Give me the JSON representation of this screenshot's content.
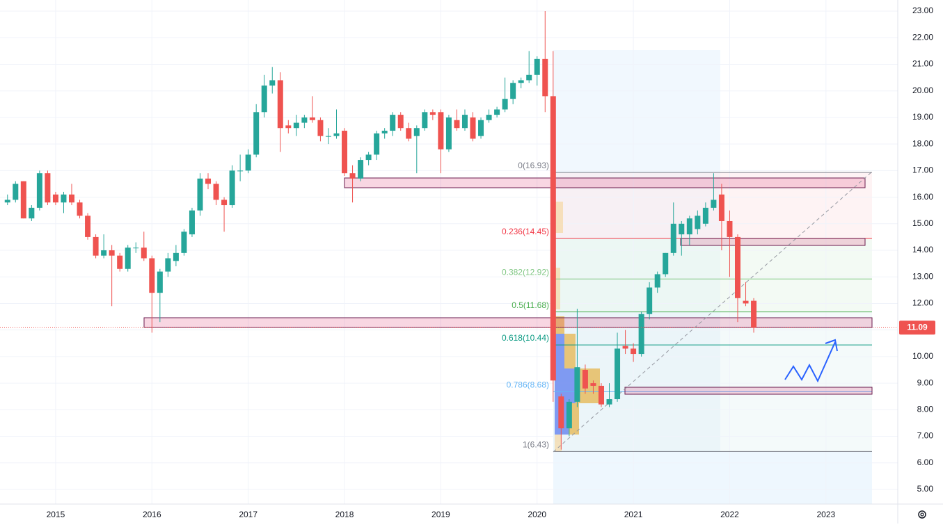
{
  "chart_data": {
    "type": "candlestick",
    "categories": [
      null,
      null,
      null,
      null,
      null,
      null,
      "2015",
      null,
      null,
      null,
      null,
      null,
      null,
      null,
      null,
      null,
      null,
      null,
      "2016",
      null,
      null,
      null,
      null,
      null,
      null,
      null,
      null,
      null,
      null,
      null,
      "2017",
      null,
      null,
      null,
      null,
      null,
      null,
      null,
      null,
      null,
      null,
      null,
      "2018",
      null,
      null,
      null,
      null,
      null,
      null,
      null,
      null,
      null,
      null,
      null,
      "2019",
      null,
      null,
      null,
      null,
      null,
      null,
      null,
      null,
      null,
      null,
      null,
      "2020",
      null,
      null,
      null,
      null,
      null,
      null,
      null,
      null,
      null,
      null,
      null,
      "2021",
      null,
      null,
      null,
      null,
      null,
      null,
      null,
      null,
      null,
      null,
      null,
      "2022",
      null,
      null,
      null,
      null,
      null,
      null,
      null,
      null,
      null,
      null,
      null,
      "2023",
      null,
      null,
      null,
      null,
      null
    ],
    "ohlc": [
      [
        15.8,
        16.1,
        15.7,
        15.9
      ],
      [
        15.9,
        16.6,
        15.8,
        16.5
      ],
      [
        16.6,
        16.6,
        15.2,
        15.2
      ],
      [
        15.2,
        15.7,
        15.1,
        15.6
      ],
      [
        15.6,
        17.0,
        15.5,
        16.9
      ],
      [
        16.9,
        17.0,
        15.7,
        15.8
      ],
      [
        16.1,
        16.2,
        15.7,
        15.8
      ],
      [
        15.8,
        16.2,
        15.4,
        16.1
      ],
      [
        16.1,
        16.5,
        15.7,
        15.8
      ],
      [
        15.8,
        15.9,
        15.2,
        15.3
      ],
      [
        15.3,
        15.4,
        14.4,
        14.5
      ],
      [
        14.5,
        14.6,
        13.7,
        13.8
      ],
      [
        13.8,
        14.6,
        13.7,
        14.0
      ],
      [
        14.0,
        14.2,
        11.9,
        13.8
      ],
      [
        13.8,
        13.9,
        13.2,
        13.3
      ],
      [
        13.3,
        14.2,
        13.2,
        14.1
      ],
      [
        14.1,
        14.3,
        13.9,
        14.1
      ],
      [
        14.1,
        14.7,
        13.6,
        13.7
      ],
      [
        13.7,
        13.8,
        10.9,
        12.4
      ],
      [
        12.4,
        13.3,
        11.3,
        13.2
      ],
      [
        13.2,
        13.9,
        13.0,
        13.7
      ],
      [
        13.6,
        14.2,
        13.4,
        13.9
      ],
      [
        13.9,
        14.8,
        13.8,
        14.7
      ],
      [
        14.6,
        15.6,
        14.5,
        15.5
      ],
      [
        15.5,
        16.9,
        15.3,
        16.7
      ],
      [
        16.7,
        16.9,
        16.3,
        16.5
      ],
      [
        16.5,
        16.6,
        15.7,
        15.9
      ],
      [
        15.9,
        16.0,
        14.7,
        15.7
      ],
      [
        15.7,
        17.2,
        15.6,
        17.0
      ],
      [
        17.0,
        17.6,
        16.6,
        17.0
      ],
      [
        17.0,
        17.8,
        16.9,
        17.6
      ],
      [
        17.6,
        19.5,
        17.5,
        19.2
      ],
      [
        19.2,
        20.6,
        19.0,
        20.2
      ],
      [
        20.2,
        20.9,
        19.9,
        20.4
      ],
      [
        20.4,
        20.7,
        17.7,
        18.6
      ],
      [
        18.7,
        18.9,
        18.4,
        18.6
      ],
      [
        18.6,
        19.1,
        18.3,
        18.8
      ],
      [
        18.8,
        19.1,
        18.6,
        19.0
      ],
      [
        19.0,
        19.8,
        18.8,
        18.9
      ],
      [
        18.9,
        19.0,
        18.1,
        18.3
      ],
      [
        18.3,
        18.6,
        18.0,
        18.3
      ],
      [
        18.3,
        19.3,
        18.2,
        18.4
      ],
      [
        18.5,
        18.6,
        16.8,
        16.9
      ],
      [
        16.9,
        17.2,
        15.8,
        16.7
      ],
      [
        16.7,
        17.5,
        16.6,
        17.4
      ],
      [
        17.4,
        17.7,
        17.2,
        17.6
      ],
      [
        17.6,
        18.5,
        17.4,
        18.4
      ],
      [
        18.4,
        18.6,
        18.2,
        18.5
      ],
      [
        18.5,
        19.2,
        18.3,
        19.1
      ],
      [
        19.1,
        19.2,
        18.5,
        18.6
      ],
      [
        18.6,
        18.8,
        18.1,
        18.2
      ],
      [
        18.3,
        18.7,
        16.9,
        18.6
      ],
      [
        18.6,
        19.3,
        18.5,
        19.2
      ],
      [
        19.2,
        19.3,
        18.9,
        19.1
      ],
      [
        19.2,
        19.3,
        16.9,
        17.8
      ],
      [
        17.8,
        19.1,
        17.7,
        19.0
      ],
      [
        18.9,
        19.3,
        18.5,
        18.6
      ],
      [
        18.6,
        19.3,
        18.5,
        19.1
      ],
      [
        19.0,
        19.2,
        18.1,
        18.2
      ],
      [
        18.3,
        19.0,
        18.2,
        18.9
      ],
      [
        18.9,
        19.3,
        18.8,
        19.1
      ],
      [
        19.1,
        19.4,
        19.0,
        19.3
      ],
      [
        19.3,
        20.5,
        19.2,
        19.7
      ],
      [
        19.7,
        20.4,
        19.5,
        20.3
      ],
      [
        20.3,
        20.5,
        20.1,
        20.4
      ],
      [
        20.4,
        21.5,
        20.3,
        20.6
      ],
      [
        20.6,
        21.3,
        20.2,
        21.2
      ],
      [
        21.2,
        23.0,
        19.2,
        19.8
      ],
      [
        19.8,
        21.5,
        8.3,
        9.1
      ],
      [
        8.5,
        8.6,
        6.5,
        7.3
      ],
      [
        7.3,
        8.4,
        7.0,
        8.3
      ],
      [
        8.3,
        11.8,
        8.1,
        9.6
      ],
      [
        9.5,
        9.7,
        8.6,
        8.8
      ],
      [
        9.0,
        9.1,
        8.6,
        8.9
      ],
      [
        8.9,
        9.0,
        8.1,
        8.2
      ],
      [
        8.2,
        9.0,
        8.1,
        8.4
      ],
      [
        8.4,
        10.9,
        8.3,
        10.3
      ],
      [
        10.4,
        11.0,
        10.1,
        10.3
      ],
      [
        10.3,
        10.5,
        9.8,
        10.1
      ],
      [
        10.1,
        11.7,
        10.0,
        11.6
      ],
      [
        11.6,
        12.8,
        11.4,
        12.6
      ],
      [
        12.6,
        13.2,
        12.4,
        13.1
      ],
      [
        13.1,
        13.9,
        13.0,
        13.9
      ],
      [
        13.9,
        15.8,
        13.8,
        15.0
      ],
      [
        14.6,
        15.1,
        13.8,
        15.0
      ],
      [
        14.6,
        15.3,
        14.2,
        15.2
      ],
      [
        14.8,
        15.5,
        14.6,
        15.3
      ],
      [
        15.0,
        15.8,
        14.9,
        15.6
      ],
      [
        15.6,
        16.9,
        15.5,
        15.9
      ],
      [
        16.1,
        16.5,
        14.0,
        15.1
      ],
      [
        15.1,
        15.5,
        13.0,
        14.5
      ],
      [
        14.5,
        14.6,
        11.3,
        12.2
      ],
      [
        12.1,
        12.8,
        11.9,
        12.0
      ],
      [
        12.1,
        12.2,
        10.9,
        11.09
      ],
      null,
      null,
      null,
      null,
      null,
      null,
      null,
      null,
      null,
      null,
      null,
      null,
      null,
      null
    ],
    "up_color": "#26a69a",
    "down_color": "#ef5350",
    "ylim": [
      4.45,
      23.42
    ],
    "yticks": [
      {
        "value": 5,
        "label": "5.00"
      },
      {
        "value": 6,
        "label": "6.00"
      },
      {
        "value": 7,
        "label": "7.00"
      },
      {
        "value": 8,
        "label": "8.00"
      },
      {
        "value": 9,
        "label": "9.00"
      },
      {
        "value": 10,
        "label": "10.00"
      },
      {
        "value": 11,
        "label": "11.00"
      },
      {
        "value": 12,
        "label": "12.00"
      },
      {
        "value": 13,
        "label": "13.00"
      },
      {
        "value": 14,
        "label": "14.00"
      },
      {
        "value": 15,
        "label": "15.00"
      },
      {
        "value": 16,
        "label": "16.00"
      },
      {
        "value": 17,
        "label": "17.00"
      },
      {
        "value": 18,
        "label": "18.00"
      },
      {
        "value": 19,
        "label": "19.00"
      },
      {
        "value": 20,
        "label": "20.00"
      },
      {
        "value": 21,
        "label": "21.00"
      },
      {
        "value": 22,
        "label": "22.00"
      },
      {
        "value": 23,
        "label": "23.00"
      }
    ],
    "grid": true,
    "last_price": 11.09,
    "fib_levels": [
      {
        "label": "0(16.93)",
        "value": 16.93,
        "color": "#787b86"
      },
      {
        "label": "0.236(14.45)",
        "value": 14.45,
        "color": "#f23645"
      },
      {
        "label": "0.382(12.92)",
        "value": 12.92,
        "color": "#81c784"
      },
      {
        "label": "0.5(11.68)",
        "value": 11.68,
        "color": "#4caf50"
      },
      {
        "label": "0.618(10.44)",
        "value": 10.44,
        "color": "#089981"
      },
      {
        "label": "0.786(8.68)",
        "value": 8.68,
        "color": "#64b5f6"
      },
      {
        "label": "1(6.43)",
        "value": 6.43,
        "color": "#787b86"
      }
    ]
  }
}
